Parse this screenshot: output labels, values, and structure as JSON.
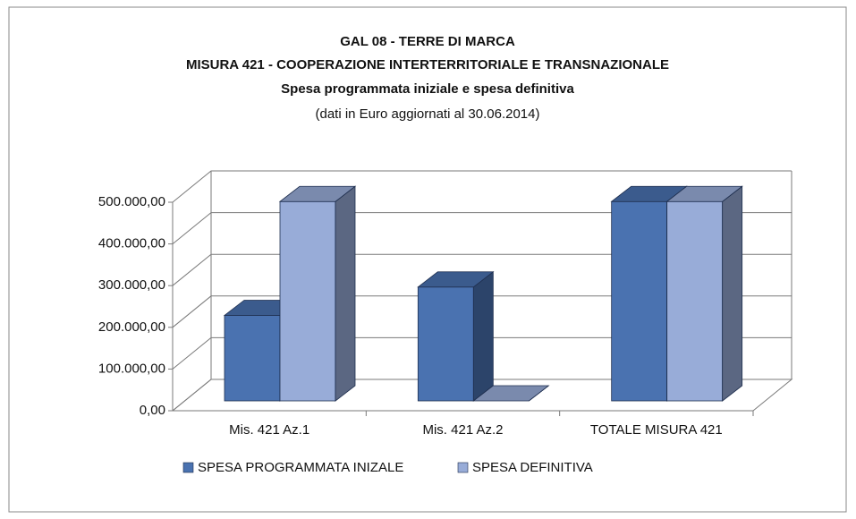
{
  "chart_data": {
    "type": "bar3d",
    "title": [
      "GAL 08 - TERRE DI MARCA",
      "MISURA 421 - COOPERAZIONE INTERTERRITORIALE  E TRANSNAZIONALE",
      "Spesa programmata iniziale e spesa definitiva"
    ],
    "subtitle": "(dati in Euro aggiornati al 30.06.2014)",
    "categories": [
      "Mis. 421 Az.1",
      "Mis. 421 Az.2",
      "TOTALE MISURA 421"
    ],
    "series": [
      {
        "name": "SPESA PROGRAMMATA INIZALE",
        "color": "#4a72b0",
        "values": [
          205000,
          273000,
          478000
        ]
      },
      {
        "name": "SPESA DEFINITIVA",
        "color": "#98acd8",
        "values": [
          478000,
          0,
          478000
        ]
      }
    ],
    "ylim": [
      0,
      500000
    ],
    "yticks": [
      {
        "value": 0,
        "label": "0,00"
      },
      {
        "value": 100000,
        "label": "100.000,00"
      },
      {
        "value": 200000,
        "label": "200.000,00"
      },
      {
        "value": 300000,
        "label": "300.000,00"
      },
      {
        "value": 400000,
        "label": "400.000,00"
      },
      {
        "value": 500000,
        "label": "500.000,00"
      }
    ],
    "grid": true,
    "legend": "bottom"
  }
}
